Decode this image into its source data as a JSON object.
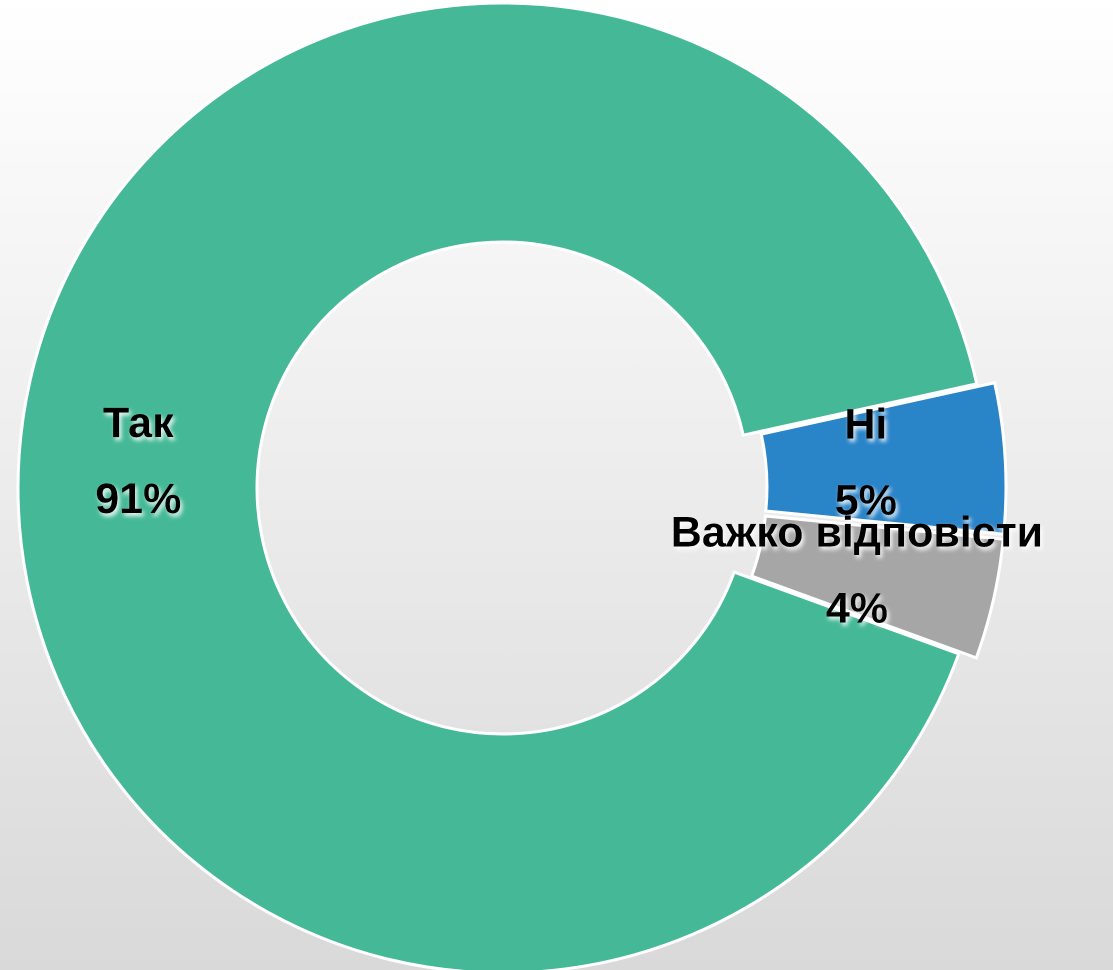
{
  "chart_data": {
    "type": "pie",
    "donut": true,
    "categories": [
      "Так",
      "Ні",
      "Важко відповісти"
    ],
    "values": [
      91,
      5,
      4
    ],
    "value_labels": [
      "91%",
      "5%",
      "4%"
    ],
    "colors": [
      "#45b997",
      "#2a84c8",
      "#a6a6a6"
    ]
  }
}
